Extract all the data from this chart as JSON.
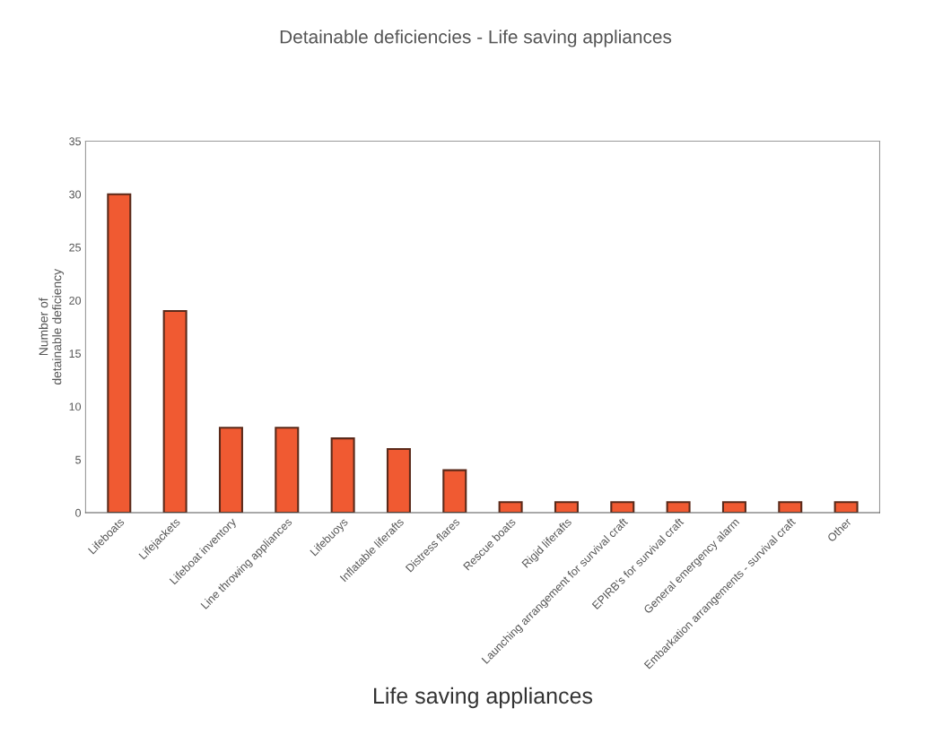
{
  "chart_data": {
    "type": "bar",
    "title": "Detainable deficiencies - Life saving appliances",
    "xlabel": "Life saving appliances",
    "ylabel": "Number of\ndetainable deficiency",
    "categories": [
      "Lifeboats",
      "Lifejackets",
      "Lifeboat inventory",
      "Line throwing appliances",
      "Lifebuoys",
      "Inflatable liferafts",
      "Distress flares",
      "Rescue boats",
      "Rigid liferafts",
      "Launching arrangement for survival craft",
      "EPIRB's for survival craft",
      "General emergency alarm",
      "Embarkation arrangements - survival craft",
      "Other"
    ],
    "values": [
      30,
      19,
      8,
      8,
      7,
      6,
      4,
      1,
      1,
      1,
      1,
      1,
      1,
      1
    ],
    "color": "#f05a32",
    "ylim": [
      0,
      35
    ],
    "yticks": [
      0,
      5,
      10,
      15,
      20,
      25,
      30,
      35
    ],
    "grid": false,
    "legend": false
  }
}
